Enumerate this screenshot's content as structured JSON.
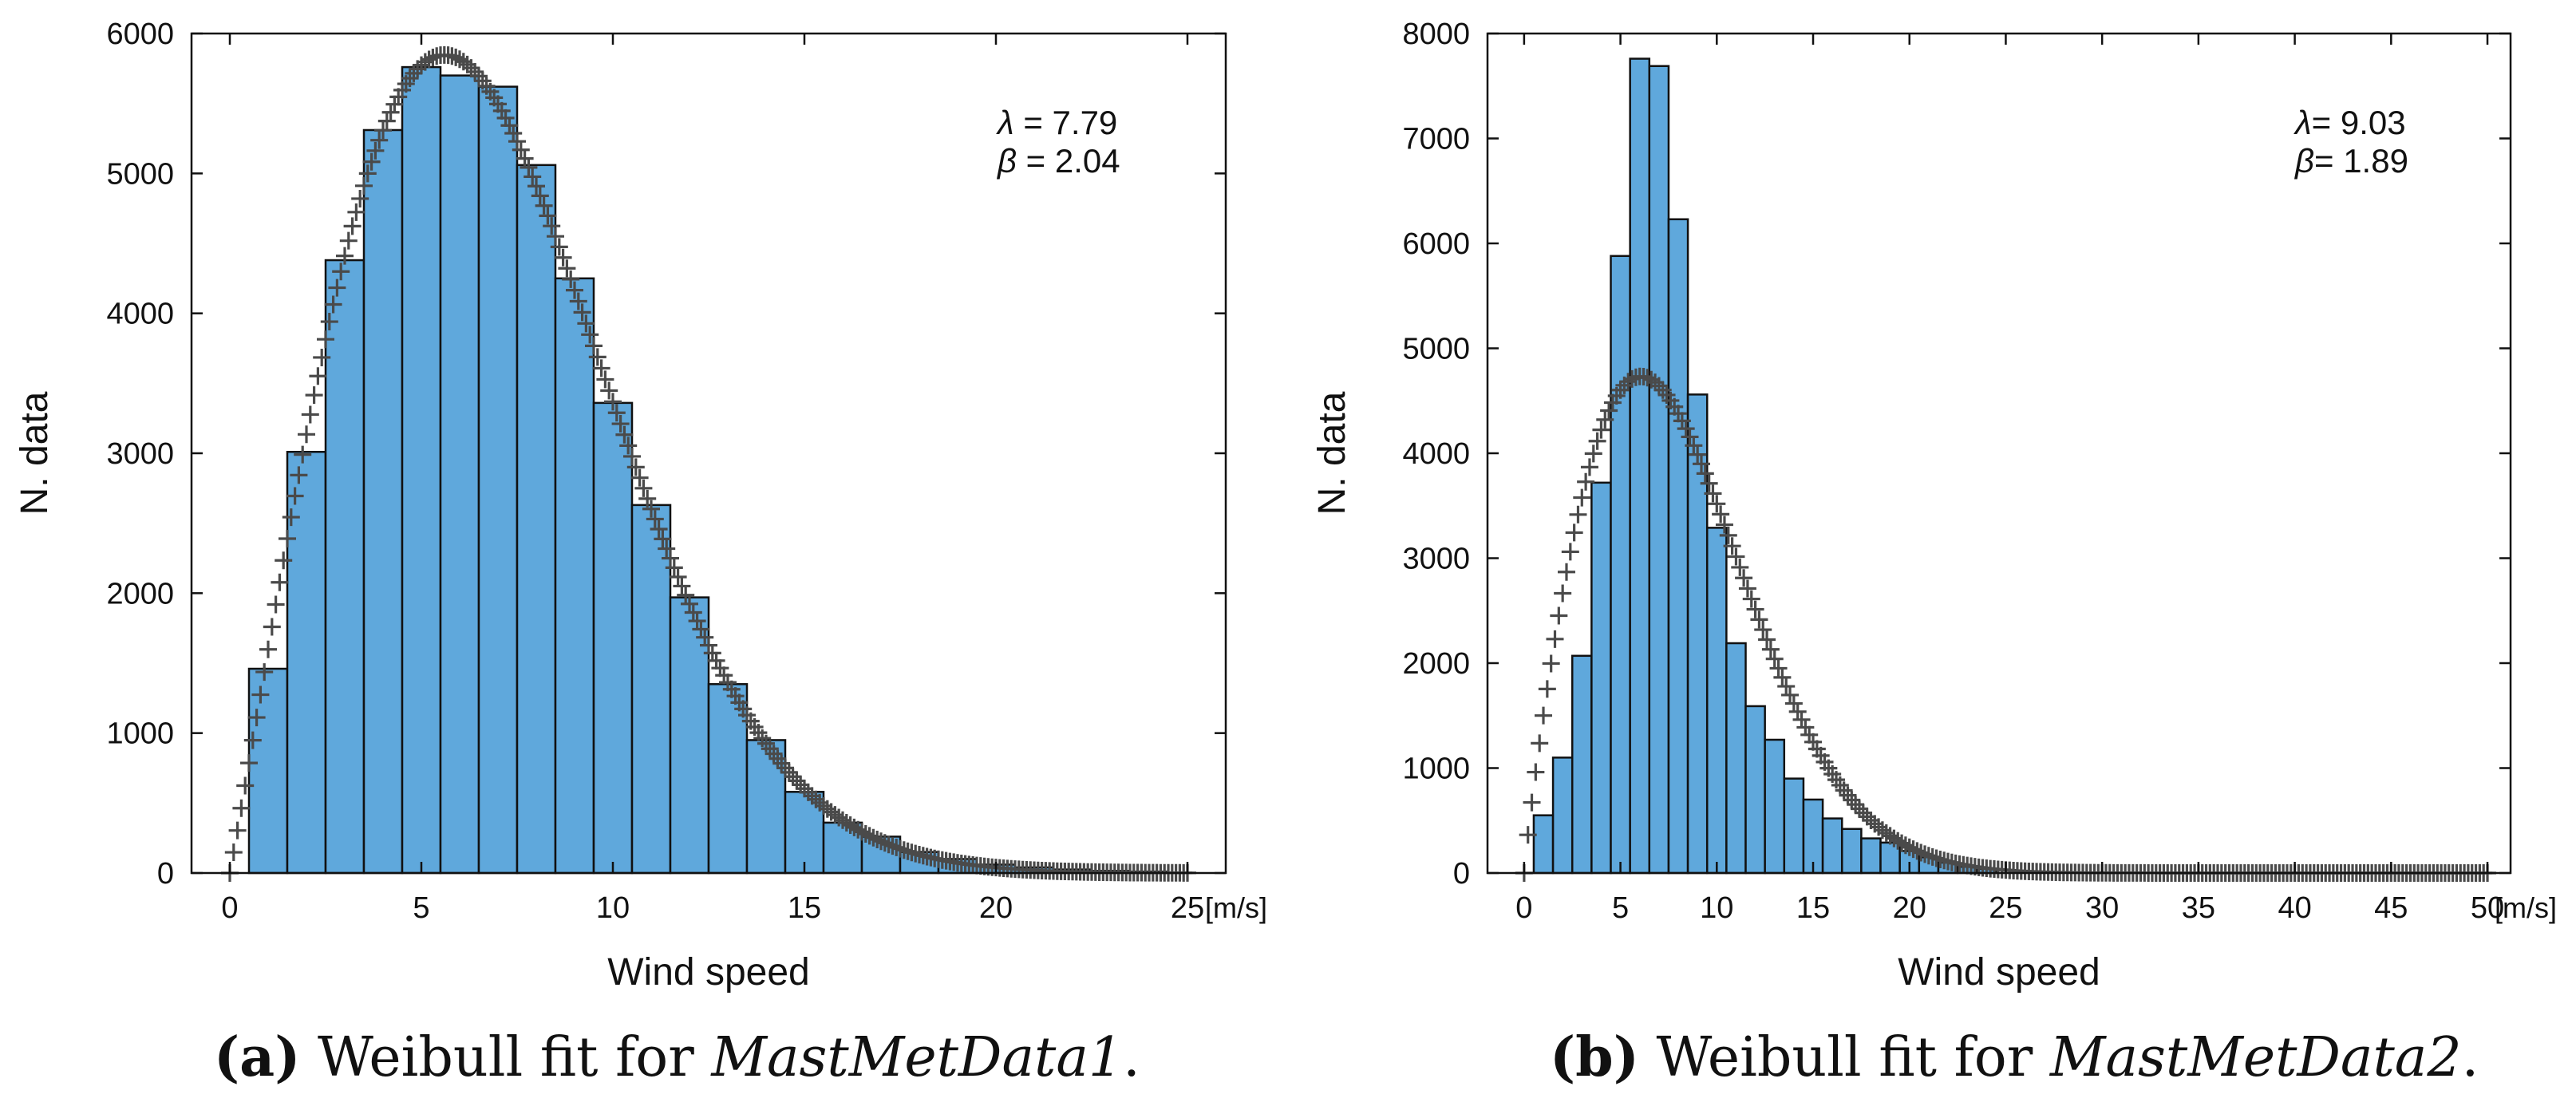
{
  "chart_data": [
    {
      "type": "bar",
      "id": "a",
      "subtype": "histogram-with-weibull-fit",
      "title": "",
      "xlabel": "Wind speed",
      "x_unit": "[m/s]",
      "ylabel": "N. data",
      "xlim": [
        -1,
        26
      ],
      "ylim": [
        0,
        6000
      ],
      "xticks": [
        "0",
        "5",
        "10",
        "15",
        "20",
        "25"
      ],
      "yticks": [
        "0",
        "1000",
        "2000",
        "3000",
        "4000",
        "5000",
        "6000"
      ],
      "grid": false,
      "bin_edges": [
        0.5,
        1.5,
        2.5,
        3.5,
        4.5,
        5.5,
        6.5,
        7.5,
        8.5,
        9.5,
        10.5,
        11.5,
        12.5,
        13.5,
        14.5,
        15.5,
        16.5,
        17.5,
        18.5,
        19.5,
        20.5,
        21.5,
        22.5,
        23.5,
        24.5
      ],
      "values": [
        1460,
        3010,
        4380,
        5310,
        5760,
        5700,
        5620,
        5060,
        4250,
        3360,
        2630,
        1970,
        1350,
        950,
        580,
        360,
        260,
        150,
        100,
        60,
        40,
        25,
        15,
        10
      ],
      "bar_color": "#5fa8dc",
      "fit": {
        "name": "Weibull",
        "lambda": 7.79,
        "beta": 2.04,
        "x_range": [
          0,
          25
        ],
        "step": 0.1,
        "marker": "+",
        "color": "#4a4a4a"
      },
      "annotation": {
        "line1": "λ = 7.79",
        "line2": "β = 2.04",
        "lambda_label": "λ",
        "lambda_value": " = 7.79",
        "beta_label": "β",
        "beta_value": " = 2.04",
        "position": "top-right"
      }
    },
    {
      "type": "bar",
      "id": "b",
      "subtype": "histogram-with-weibull-fit",
      "title": "",
      "xlabel": "Wind speed",
      "x_unit": "[m/s]",
      "ylabel": "N. data",
      "xlim": [
        -1.9,
        51.2
      ],
      "ylim": [
        0,
        8000
      ],
      "xticks": [
        "0",
        "5",
        "10",
        "15",
        "20",
        "25",
        "30",
        "35",
        "40",
        "45",
        "50"
      ],
      "yticks": [
        "0",
        "1000",
        "2000",
        "3000",
        "4000",
        "5000",
        "6000",
        "7000",
        "8000"
      ],
      "grid": false,
      "bin_edges": [
        0.5,
        1.5,
        2.5,
        3.5,
        4.5,
        5.5,
        6.5,
        7.5,
        8.5,
        9.5,
        10.5,
        11.5,
        12.5,
        13.5,
        14.5,
        15.5,
        16.5,
        17.5,
        18.5,
        19.5,
        20.5,
        21.5,
        22.5,
        23.5,
        24.5
      ],
      "values": [
        550,
        1100,
        2070,
        3720,
        5880,
        7760,
        7690,
        6230,
        4560,
        3290,
        2190,
        1590,
        1270,
        900,
        700,
        520,
        420,
        330,
        290,
        210,
        150,
        100,
        60,
        40
      ],
      "bar_color": "#5fa8dc",
      "fit": {
        "name": "Weibull",
        "lambda": 9.03,
        "beta": 1.89,
        "x_range": [
          0,
          50
        ],
        "step": 0.2,
        "marker": "+",
        "color": "#4a4a4a"
      },
      "annotation": {
        "line1": "λ= 9.03",
        "line2": "β= 1.89",
        "lambda_label": "λ",
        "lambda_value": "= 9.03",
        "beta_label": "β",
        "beta_value": "= 1.89",
        "position": "top-right"
      }
    }
  ],
  "captions": {
    "a": {
      "label": "(a)",
      "text": " Weibull fit for ",
      "dataset": "MastMetData1",
      "end": "."
    },
    "b": {
      "label": "(b)",
      "text": " Weibull fit for ",
      "dataset": "MastMetData2",
      "end": "."
    }
  }
}
